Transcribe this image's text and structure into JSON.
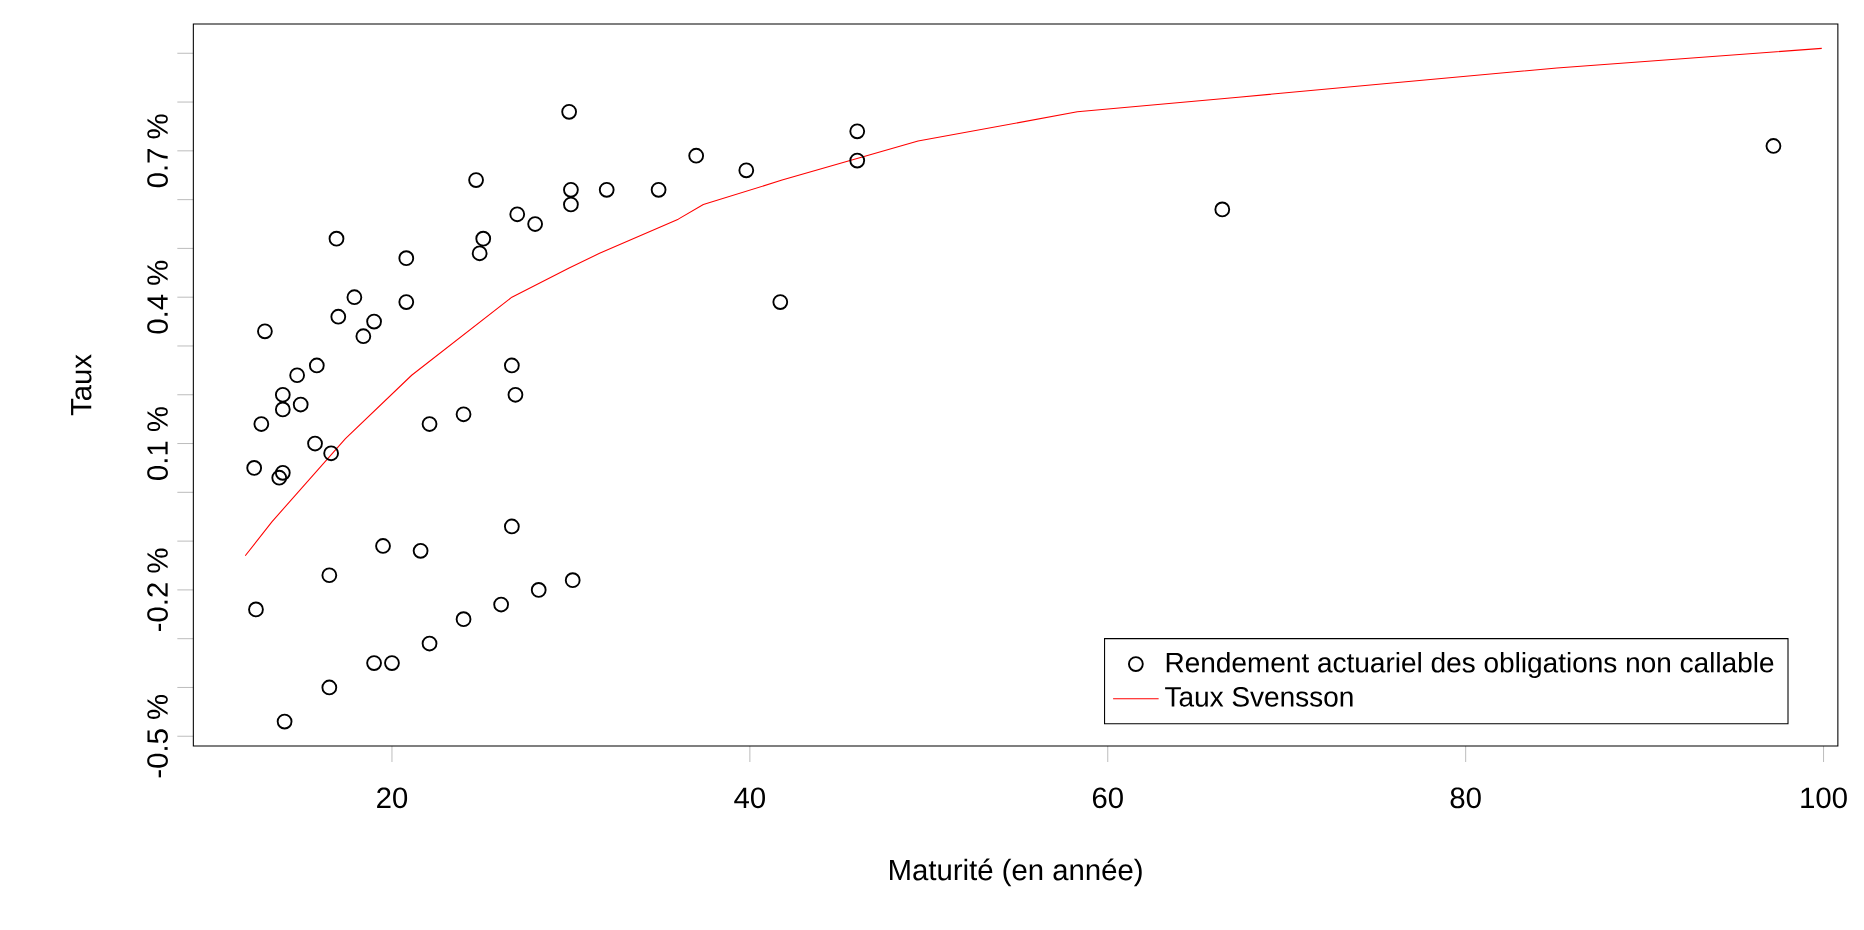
{
  "chart_data": {
    "type": "scatter",
    "xlabel": "Maturité (en année)",
    "ylabel": "Taux",
    "xlim": [
      8.9,
      100.8
    ],
    "ylim": [
      -0.52,
      0.96
    ],
    "xticks": [
      20,
      40,
      60,
      80,
      100
    ],
    "yticks": [
      {
        "value": -0.5,
        "label": "-0.5 %"
      },
      {
        "value": -0.4,
        "label": null
      },
      {
        "value": -0.3,
        "label": null
      },
      {
        "value": -0.2,
        "label": "-0.2 %"
      },
      {
        "value": -0.1,
        "label": null
      },
      {
        "value": 0.0,
        "label": null
      },
      {
        "value": 0.1,
        "label": "0.1 %"
      },
      {
        "value": 0.2,
        "label": null
      },
      {
        "value": 0.3,
        "label": null
      },
      {
        "value": 0.4,
        "label": "0.4 %"
      },
      {
        "value": 0.5,
        "label": null
      },
      {
        "value": 0.6,
        "label": null
      },
      {
        "value": 0.7,
        "label": "0.7 %"
      },
      {
        "value": 0.8,
        "label": null
      },
      {
        "value": 0.9,
        "label": null
      }
    ],
    "legend": "bottom right",
    "series": [
      {
        "name": "Rendement actuariel des obligations non callable",
        "marker": "circle",
        "color": "#000000",
        "x": [
          29.9,
          24.7,
          30.0,
          32.0,
          34.9,
          30.0,
          27.0,
          28.0,
          16.9,
          25.1,
          24.9,
          20.8,
          17.9,
          20.8,
          17.0,
          19.0,
          18.4,
          12.9,
          15.8,
          14.7,
          26.7,
          13.9,
          14.9,
          13.9,
          26.9,
          12.7,
          22.1,
          24.0,
          15.7,
          16.6,
          12.3,
          13.9,
          13.7,
          26.7,
          19.5,
          21.6,
          16.5,
          30.1,
          28.2,
          12.4,
          26.1,
          24.0,
          22.1,
          19.0,
          20.0,
          16.5,
          14.0,
          37.0,
          39.8,
          46.0,
          46.0,
          41.7,
          66.4,
          97.2
        ],
        "values": [
          0.78,
          0.64,
          0.62,
          0.62,
          0.62,
          0.59,
          0.57,
          0.55,
          0.52,
          0.52,
          0.49,
          0.48,
          0.4,
          0.39,
          0.36,
          0.35,
          0.32,
          0.33,
          0.26,
          0.24,
          0.26,
          0.2,
          0.18,
          0.17,
          0.2,
          0.14,
          0.14,
          0.16,
          0.1,
          0.08,
          0.05,
          0.04,
          0.03,
          -0.07,
          -0.11,
          -0.12,
          -0.17,
          -0.18,
          -0.2,
          -0.24,
          -0.23,
          -0.26,
          -0.31,
          -0.35,
          -0.35,
          -0.4,
          -0.47,
          0.69,
          0.66,
          0.74,
          0.68,
          0.39,
          0.58,
          0.71
        ]
      },
      {
        "name": "Taux Svensson",
        "type": "line",
        "marker": "none",
        "line_style": "solid",
        "color": "#ff0000",
        "x": [
          11.8,
          13.3,
          17.4,
          21.1,
          26.7,
          29.9,
          31.6,
          36.0,
          37.4,
          41.8,
          49.4,
          58.3,
          67.3,
          76.2,
          85.1,
          99.9
        ],
        "values": [
          -0.13,
          -0.06,
          0.11,
          0.24,
          0.4,
          0.46,
          0.49,
          0.56,
          0.59,
          0.64,
          0.72,
          0.78,
          0.81,
          0.84,
          0.87,
          0.91
        ]
      }
    ]
  }
}
